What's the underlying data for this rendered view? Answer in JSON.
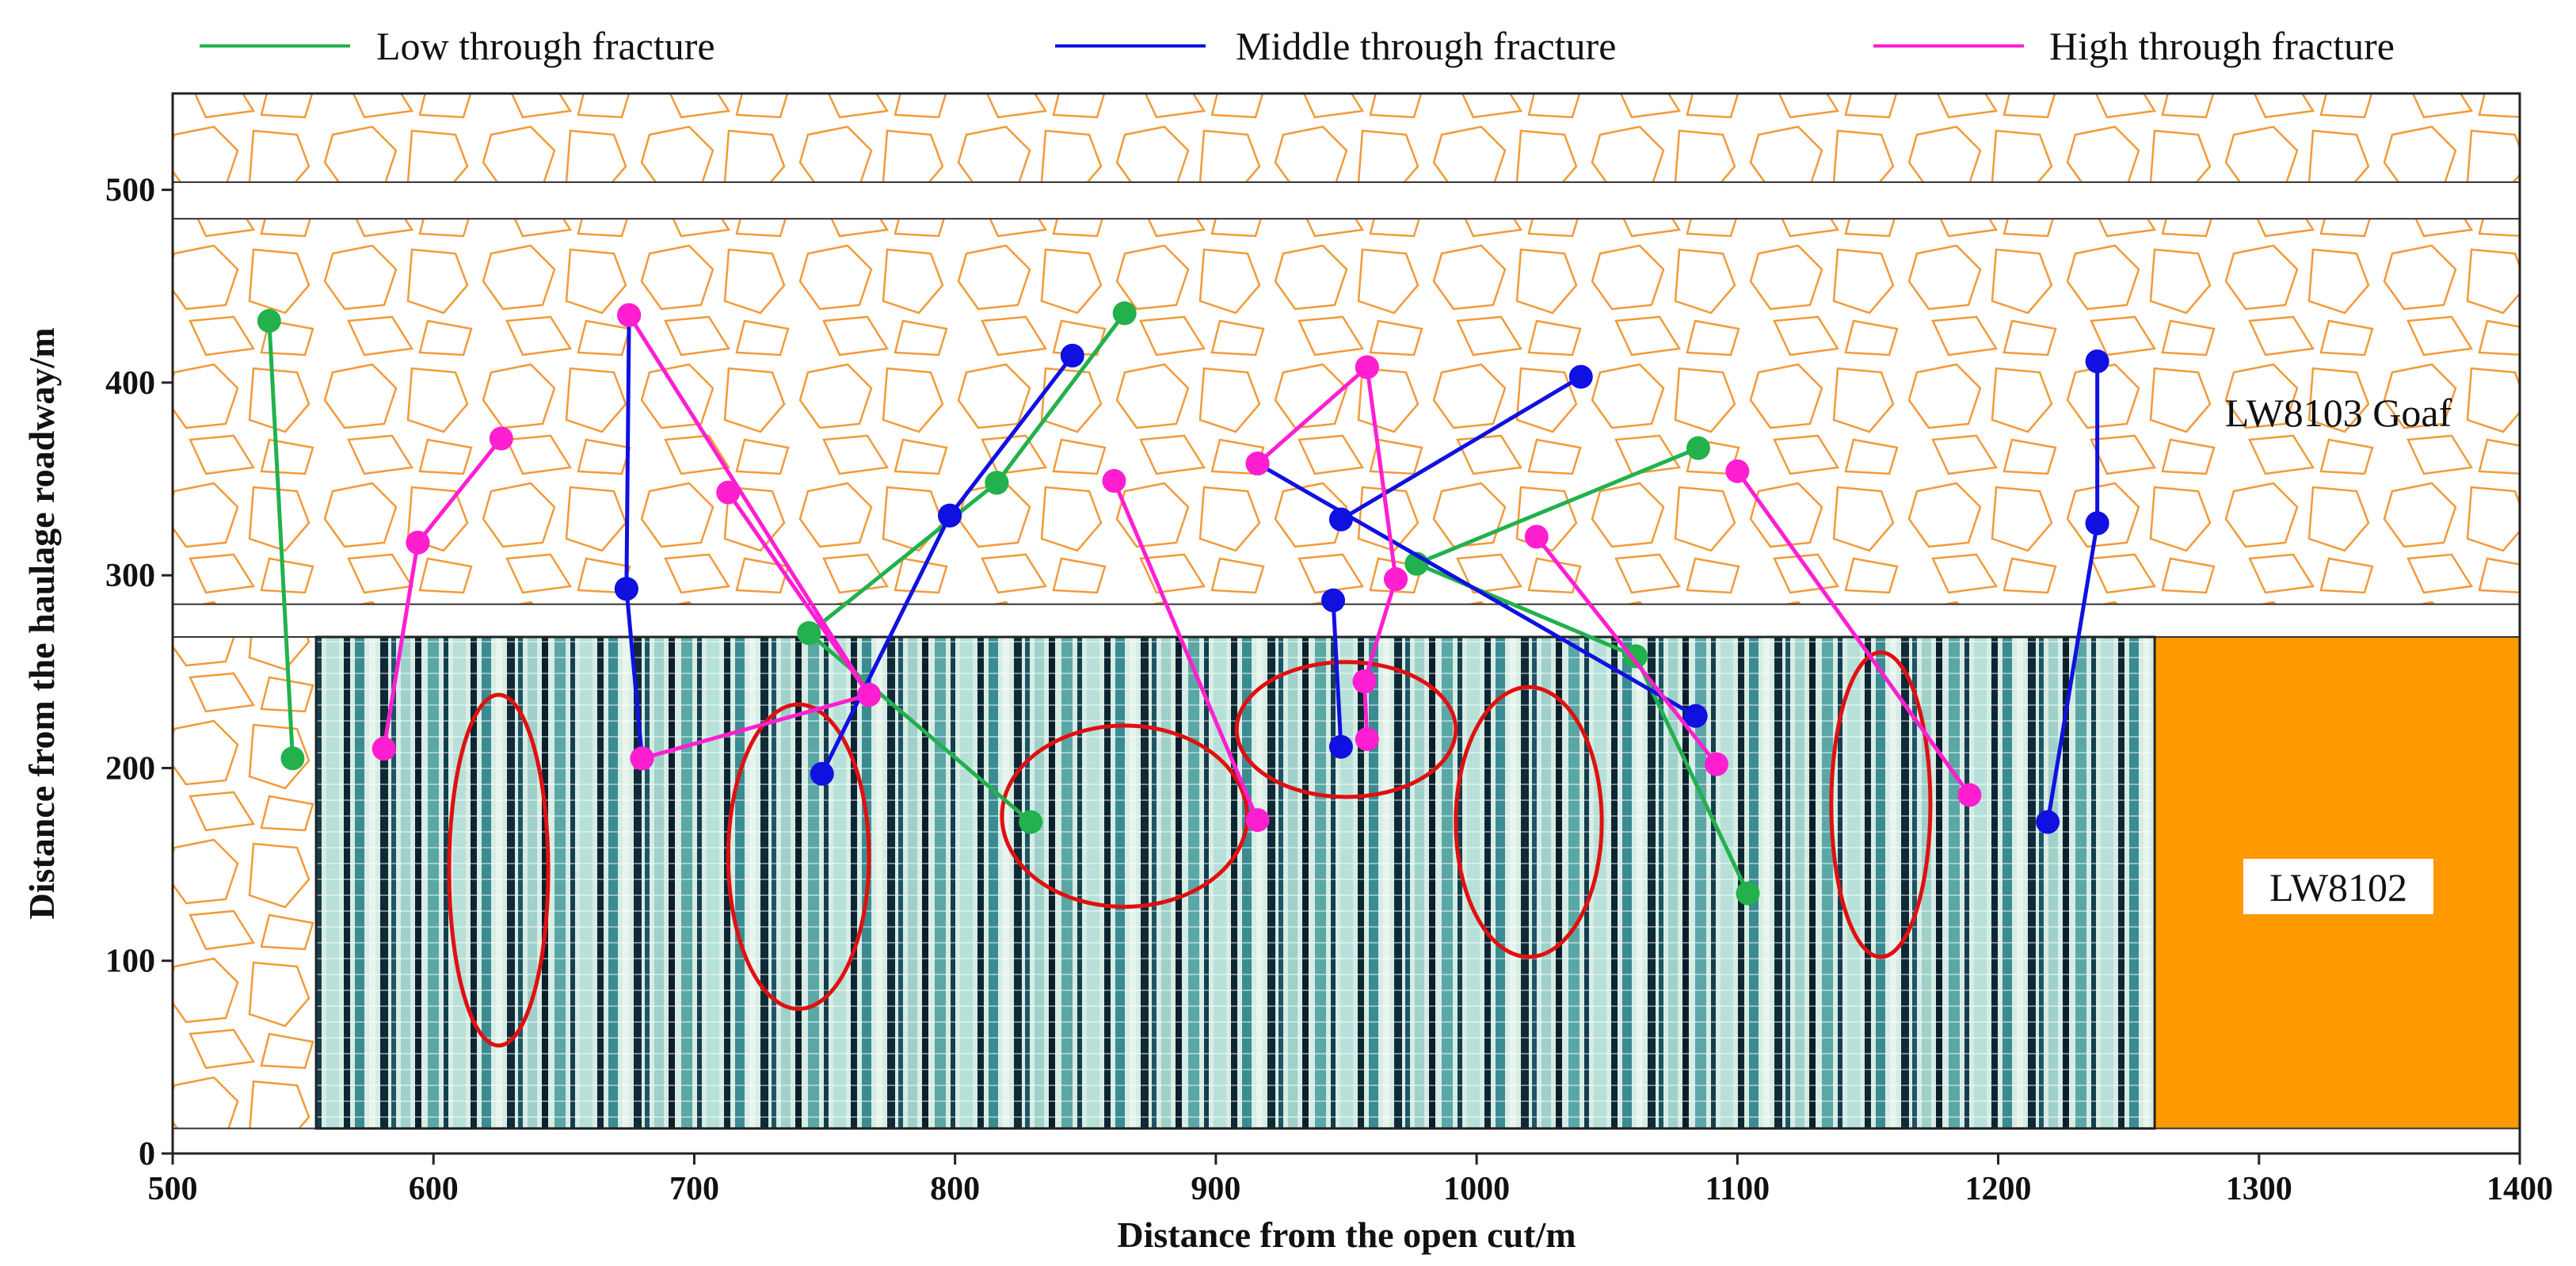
{
  "chart_data": {
    "type": "scatter",
    "xlabel": "Distance from the open cut/m",
    "ylabel": "Distance from the haulage roadway/m",
    "xlim": [
      500,
      1400
    ],
    "ylim": [
      0,
      550
    ],
    "xticks": [
      500,
      600,
      700,
      800,
      900,
      1000,
      1100,
      1200,
      1300,
      1400
    ],
    "yticks": [
      0,
      100,
      200,
      300,
      400,
      500
    ],
    "grid": false,
    "legend_position": "top",
    "series": [
      {
        "name": "Low through fracture",
        "color": "#22b14c",
        "segments": [
          [
            [
              537,
              432
            ],
            [
              546,
              205
            ]
          ],
          [
            [
              744,
              270
            ],
            [
              829,
              172
            ]
          ],
          [
            [
              744,
              270
            ],
            [
              816,
              348
            ]
          ],
          [
            [
              816,
              348
            ],
            [
              865,
              436
            ]
          ],
          [
            [
              977,
              306
            ],
            [
              1085,
              366
            ]
          ],
          [
            [
              977,
              306
            ],
            [
              1061,
              258
            ]
          ],
          [
            [
              1061,
              258
            ],
            [
              1104,
              135
            ]
          ]
        ]
      },
      {
        "name": "Middle through fracture",
        "color": "#1010e0",
        "segments": [
          [
            [
              675,
              435
            ],
            [
              674,
              293
            ]
          ],
          [
            [
              674,
              293
            ],
            [
              680,
              205
            ]
          ],
          [
            [
              749,
              197
            ],
            [
              798,
              331
            ]
          ],
          [
            [
              798,
              331
            ],
            [
              845,
              414
            ]
          ],
          [
            [
              948,
              329
            ],
            [
              1040,
              403
            ]
          ],
          [
            [
              916,
              358
            ],
            [
              1084,
              227
            ]
          ],
          [
            [
              945,
              287
            ],
            [
              948,
              211
            ]
          ],
          [
            [
              1238,
              411
            ],
            [
              1238,
              327
            ]
          ],
          [
            [
              1238,
              327
            ],
            [
              1219,
              172
            ]
          ]
        ]
      },
      {
        "name": "High through fracture",
        "color": "#ff1fd1",
        "segments": [
          [
            [
              581,
              210
            ],
            [
              594,
              317
            ]
          ],
          [
            [
              594,
              317
            ],
            [
              626,
              371
            ]
          ],
          [
            [
              680,
              205
            ],
            [
              767,
              238
            ]
          ],
          [
            [
              675,
              435
            ],
            [
              767,
              238
            ]
          ],
          [
            [
              713,
              343
            ],
            [
              767,
              238
            ]
          ],
          [
            [
              861,
              349
            ],
            [
              916,
              173
            ]
          ],
          [
            [
              916,
              358
            ],
            [
              958,
              408
            ]
          ],
          [
            [
              958,
              408
            ],
            [
              969,
              298
            ]
          ],
          [
            [
              969,
              298
            ],
            [
              957,
              245
            ]
          ],
          [
            [
              957,
              245
            ],
            [
              958,
              215
            ]
          ],
          [
            [
              1023,
              320
            ],
            [
              1092,
              202
            ]
          ],
          [
            [
              1100,
              354
            ],
            [
              1189,
              186
            ]
          ]
        ]
      }
    ],
    "regions": [
      {
        "label": "",
        "kind": "goaf",
        "x": [
          500,
          1400
        ],
        "y": [
          504,
          550
        ]
      },
      {
        "label": "",
        "kind": "goaf",
        "x": [
          500,
          1400
        ],
        "y": [
          285,
          485
        ]
      },
      {
        "label": "LW8103 Goaf"
      },
      {
        "label": "LW8102",
        "kind": "block",
        "color": "#ff9900",
        "x": [
          1260,
          1400
        ],
        "y": [
          13,
          268
        ]
      },
      {
        "label": "",
        "kind": "goaf",
        "x": [
          500,
          555
        ],
        "y": [
          13,
          268
        ]
      }
    ],
    "density_heatmap_extent": {
      "x": [
        555,
        1260
      ],
      "y": [
        13,
        268
      ]
    },
    "ellipses_color": "#e01010",
    "ellipses": [
      {
        "cx": 625,
        "cy": 147,
        "rx": 19,
        "ry": 91
      },
      {
        "cx": 740,
        "cy": 154,
        "rx": 27,
        "ry": 79
      },
      {
        "cx": 865,
        "cy": 175,
        "rx": 47,
        "ry": 47
      },
      {
        "cx": 950,
        "cy": 220,
        "rx": 42,
        "ry": 35
      },
      {
        "cx": 1020,
        "cy": 172,
        "rx": 28,
        "ry": 70
      },
      {
        "cx": 1155,
        "cy": 181,
        "rx": 19,
        "ry": 79
      }
    ]
  }
}
